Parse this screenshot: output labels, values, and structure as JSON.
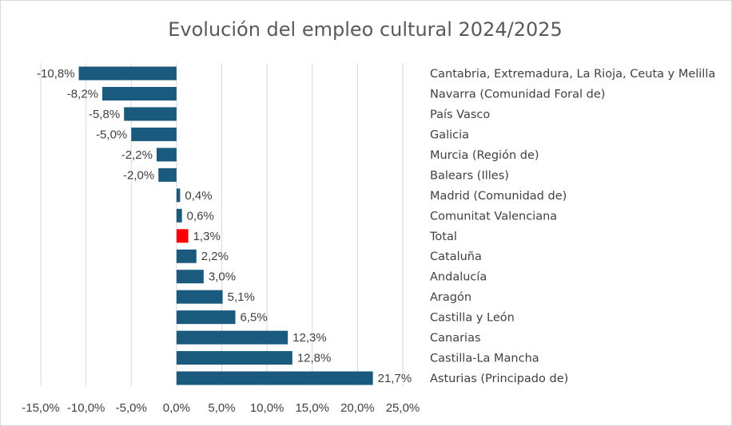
{
  "chart_data": {
    "type": "bar",
    "orientation": "horizontal",
    "title": "Evolución del empleo cultural 2024/2025",
    "xlim": [
      -15,
      25
    ],
    "xticks": [
      -15,
      -10,
      -5,
      0,
      5,
      10,
      15,
      20,
      25
    ],
    "xtick_labels": [
      "-15,0%",
      "-10,0%",
      "-5,0%",
      "0,0%",
      "5,0%",
      "10,0%",
      "15,0%",
      "20,0%",
      "25,0%"
    ],
    "grid": true,
    "colors": {
      "bar": "#1a5a7e",
      "highlight": "#ff0000",
      "grid": "#d9d9d9",
      "text": "#404040",
      "title": "#595959"
    },
    "categories": [
      "Cantabria, Extremadura, La Rioja, Ceuta y Melilla",
      "Navarra (Comunidad Foral de)",
      "País Vasco",
      "Galicia",
      "Murcia (Región de)",
      "Balears (Illes)",
      "Madrid (Comunidad de)",
      "Comunitat Valenciana",
      "Total",
      "Cataluña",
      "Andalucía",
      "Aragón",
      "Castilla y León",
      "Canarias",
      "Castilla-La Mancha",
      "Asturias (Principado de)"
    ],
    "values": [
      -10.8,
      -8.2,
      -5.8,
      -5.0,
      -2.2,
      -2.0,
      0.4,
      0.6,
      1.3,
      2.2,
      3.0,
      5.1,
      6.5,
      12.3,
      12.8,
      21.7
    ],
    "data_labels": [
      "-10,8%",
      "-8,2%",
      "-5,8%",
      "-5,0%",
      "-2,2%",
      "-2,0%",
      "0,4%",
      "0,6%",
      "1,3%",
      "2,2%",
      "3,0%",
      "5,1%",
      "6,5%",
      "12,3%",
      "12,8%",
      "21,7%"
    ],
    "highlight_category": "Total"
  }
}
